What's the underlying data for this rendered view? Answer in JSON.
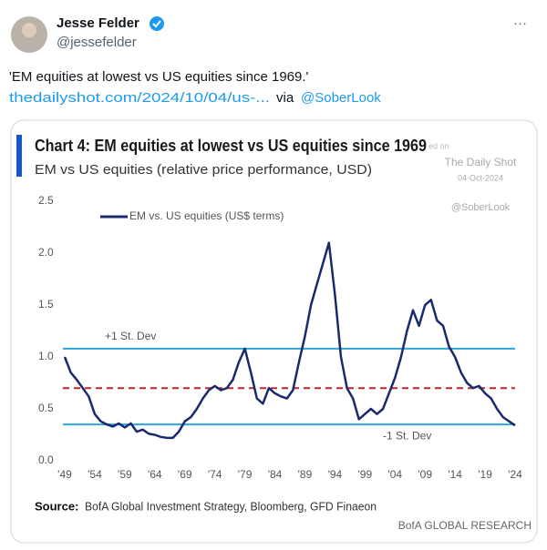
{
  "tweet": {
    "name": "Jesse Felder",
    "handle": "@jessefelder",
    "more": "···",
    "text": "'EM equities at lowest vs US equities since 1969.'",
    "link": "thedailyshot.com/2024/10/04/us-...",
    "via": "via",
    "mention": "@SoberLook"
  },
  "chart_data": {
    "type": "line",
    "title": "Chart 4: EM equities at lowest vs US equities since 1969",
    "subtitle": "EM vs US equities (relative price performance, USD)",
    "watermark": [
      "ed on",
      "The Daily Shot",
      "04-Oct-2024",
      "@SoberLook"
    ],
    "source_label": "Source:",
    "source_text": "BofA Global Investment Strategy, Bloomberg, GFD Finaeon",
    "brand": "BofA GLOBAL RESEARCH",
    "x": [
      1949,
      1950,
      1951,
      1952,
      1953,
      1954,
      1955,
      1956,
      1957,
      1958,
      1959,
      1960,
      1961,
      1962,
      1963,
      1964,
      1965,
      1966,
      1967,
      1968,
      1969,
      1970,
      1971,
      1972,
      1973,
      1974,
      1975,
      1976,
      1977,
      1978,
      1979,
      1980,
      1981,
      1982,
      1983,
      1984,
      1985,
      1986,
      1987,
      1988,
      1989,
      1990,
      1991,
      1992,
      1993,
      1994,
      1995,
      1996,
      1997,
      1998,
      1999,
      2000,
      2001,
      2002,
      2003,
      2004,
      2005,
      2006,
      2007,
      2008,
      2009,
      2010,
      2011,
      2012,
      2013,
      2014,
      2015,
      2016,
      2017,
      2018,
      2019,
      2020,
      2021,
      2022,
      2023,
      2024
    ],
    "series": [
      {
        "name": "EM vs. US equities (US$ terms)",
        "color": "#1a2a6c",
        "values": [
          1.0,
          0.85,
          0.78,
          0.7,
          0.62,
          0.45,
          0.38,
          0.35,
          0.33,
          0.36,
          0.32,
          0.36,
          0.28,
          0.3,
          0.26,
          0.25,
          0.23,
          0.22,
          0.22,
          0.28,
          0.38,
          0.42,
          0.5,
          0.6,
          0.68,
          0.72,
          0.68,
          0.7,
          0.78,
          0.95,
          1.08,
          0.85,
          0.6,
          0.55,
          0.7,
          0.65,
          0.62,
          0.6,
          0.68,
          0.95,
          1.2,
          1.5,
          1.7,
          1.9,
          2.1,
          1.6,
          1.0,
          0.7,
          0.6,
          0.4,
          0.45,
          0.5,
          0.45,
          0.5,
          0.65,
          0.8,
          1.0,
          1.25,
          1.45,
          1.3,
          1.5,
          1.55,
          1.35,
          1.3,
          1.1,
          1.0,
          0.85,
          0.75,
          0.7,
          0.72,
          0.65,
          0.6,
          0.5,
          0.42,
          0.38,
          0.34
        ]
      }
    ],
    "reference_lines": [
      {
        "value": 1.08,
        "label": "+1 St. Dev",
        "color": "#29a8d9"
      },
      {
        "value": 0.7,
        "color": "#c0272d",
        "dashed": true
      },
      {
        "value": 0.35,
        "label": "-1 St. Dev",
        "color": "#29a8d9"
      }
    ],
    "xlim": [
      1949,
      2024
    ],
    "xticks": [
      {
        "value": 1949,
        "label": "'49"
      },
      {
        "value": 1954,
        "label": "'54"
      },
      {
        "value": 1959,
        "label": "'59"
      },
      {
        "value": 1964,
        "label": "'64"
      },
      {
        "value": 1969,
        "label": "'69"
      },
      {
        "value": 1974,
        "label": "'74"
      },
      {
        "value": 1979,
        "label": "'79"
      },
      {
        "value": 1984,
        "label": "'84"
      },
      {
        "value": 1989,
        "label": "'89"
      },
      {
        "value": 1994,
        "label": "'94"
      },
      {
        "value": 1999,
        "label": "'99"
      },
      {
        "value": 2004,
        "label": "'04"
      },
      {
        "value": 2009,
        "label": "'09"
      },
      {
        "value": 2014,
        "label": "'14"
      },
      {
        "value": 2019,
        "label": "'19"
      },
      {
        "value": 2024,
        "label": "'24"
      }
    ],
    "ylim": [
      0,
      2.5
    ],
    "yticks": [
      {
        "value": 0,
        "label": "0.0"
      },
      0.5,
      {
        "value": 1,
        "label": "1.0"
      },
      1.5,
      {
        "value": 2,
        "label": "2.0"
      },
      2.5
    ]
  }
}
